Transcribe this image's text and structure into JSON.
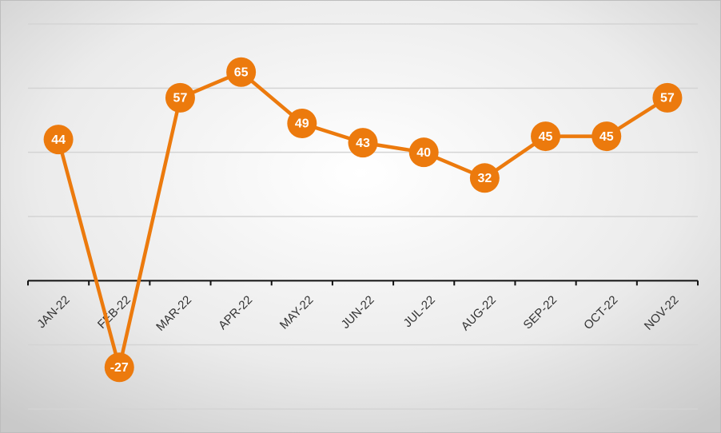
{
  "chart_data": {
    "type": "line",
    "categories": [
      "JAN-22",
      "FEB-22",
      "MAR-22",
      "APR-22",
      "MAY-22",
      "JUN-22",
      "JUL-22",
      "AUG-22",
      "SEP-22",
      "OCT-22",
      "NOV-22"
    ],
    "values": [
      44,
      -27,
      57,
      65,
      49,
      43,
      40,
      32,
      45,
      45,
      57
    ],
    "color": "#ec7a0d",
    "ylim": [
      -40,
      80
    ],
    "yticks": [
      -40,
      -20,
      0,
      20,
      40,
      60,
      80
    ],
    "grid": true
  }
}
